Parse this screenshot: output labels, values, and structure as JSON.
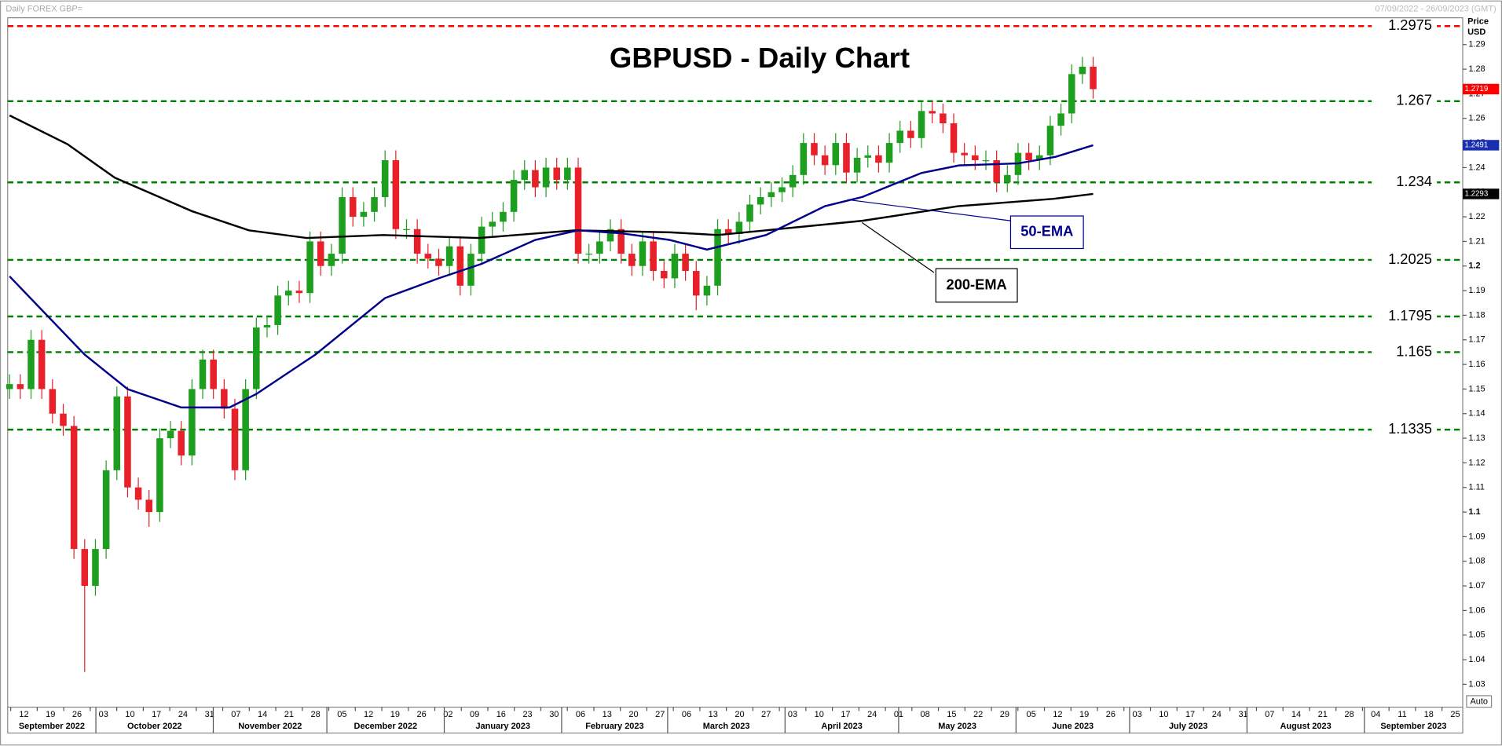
{
  "chart_data": {
    "type": "candlestick",
    "title": "GBPUSD - Daily Chart",
    "source": "Daily FOREX GBP=",
    "date_range": "07/09/2022 - 26/09/2023 (GMT)",
    "y_axis_label": [
      "Price",
      "USD"
    ],
    "auto_button": "Auto",
    "up_color": "#1e9e1e",
    "down_color": "#e8202a",
    "ylim": [
      1.0207,
      1.3009
    ],
    "yticks": [
      1.03,
      1.04,
      1.05,
      1.06,
      1.07,
      1.08,
      1.09,
      1.1,
      1.11,
      1.12,
      1.13,
      1.14,
      1.15,
      1.16,
      1.17,
      1.18,
      1.19,
      1.2,
      1.21,
      1.22,
      1.23,
      1.24,
      1.25,
      1.26,
      1.27,
      1.28,
      1.29
    ],
    "xticks": [
      "12",
      "19",
      "26",
      "03",
      "10",
      "17",
      "24",
      "31",
      "07",
      "14",
      "21",
      "28",
      "05",
      "12",
      "19",
      "26",
      "02",
      "09",
      "16",
      "23",
      "30",
      "06",
      "13",
      "20",
      "27",
      "06",
      "13",
      "20",
      "27",
      "03",
      "10",
      "17",
      "24",
      "01",
      "08",
      "15",
      "22",
      "29",
      "05",
      "12",
      "19",
      "26",
      "03",
      "10",
      "17",
      "24",
      "31",
      "07",
      "14",
      "21",
      "28",
      "04",
      "11",
      "18",
      "25"
    ],
    "months": [
      "September 2022",
      "October 2022",
      "November 2022",
      "December 2022",
      "January 2023",
      "February 2023",
      "March 2023",
      "April 2023",
      "May 2023",
      "June 2023",
      "July 2023",
      "August 2023",
      "September 2023"
    ],
    "open": [
      1.15,
      1.152,
      1.15,
      1.17,
      1.15,
      1.14,
      1.135,
      1.085,
      1.07,
      1.085,
      1.117,
      1.147,
      1.11,
      1.105,
      1.1,
      1.13,
      1.133,
      1.123,
      1.15,
      1.162,
      1.15,
      1.142,
      1.117,
      1.15,
      1.175,
      1.176,
      1.188,
      1.19,
      1.189,
      1.21,
      1.2,
      1.205,
      1.228,
      1.22,
      1.222,
      1.228,
      1.243,
      1.215,
      1.215,
      1.205,
      1.203,
      1.2,
      1.208,
      1.192,
      1.205,
      1.216,
      1.218,
      1.222,
      1.235,
      1.239,
      1.232,
      1.24,
      1.235,
      1.24,
      1.205,
      1.205,
      1.21,
      1.215,
      1.205,
      1.2,
      1.21,
      1.198,
      1.195,
      1.205,
      1.198,
      1.188,
      1.192,
      1.215,
      1.213,
      1.218,
      1.225,
      1.228,
      1.23,
      1.232,
      1.237,
      1.25,
      1.245,
      1.241,
      1.25,
      1.238,
      1.244,
      1.245,
      1.242,
      1.25,
      1.255,
      1.252,
      1.263,
      1.262,
      1.258,
      1.246,
      1.245,
      1.243,
      1.243,
      1.234,
      1.237,
      1.246,
      1.243,
      1.245,
      1.257,
      1.262,
      1.278,
      1.281
    ],
    "high": [
      1.156,
      1.156,
      1.174,
      1.174,
      1.154,
      1.144,
      1.139,
      1.089,
      1.089,
      1.121,
      1.151,
      1.151,
      1.114,
      1.109,
      1.134,
      1.137,
      1.137,
      1.154,
      1.166,
      1.166,
      1.154,
      1.146,
      1.154,
      1.179,
      1.18,
      1.192,
      1.194,
      1.194,
      1.214,
      1.214,
      1.209,
      1.232,
      1.232,
      1.226,
      1.232,
      1.247,
      1.247,
      1.219,
      1.219,
      1.209,
      1.207,
      1.212,
      1.212,
      1.209,
      1.22,
      1.222,
      1.226,
      1.239,
      1.243,
      1.243,
      1.244,
      1.244,
      1.244,
      1.244,
      1.209,
      1.214,
      1.219,
      1.219,
      1.209,
      1.214,
      1.214,
      1.202,
      1.209,
      1.209,
      1.202,
      1.196,
      1.219,
      1.219,
      1.222,
      1.229,
      1.232,
      1.234,
      1.236,
      1.241,
      1.254,
      1.254,
      1.249,
      1.254,
      1.254,
      1.248,
      1.249,
      1.249,
      1.254,
      1.259,
      1.259,
      1.267,
      1.267,
      1.266,
      1.262,
      1.25,
      1.249,
      1.247,
      1.247,
      1.241,
      1.25,
      1.25,
      1.249,
      1.261,
      1.266,
      1.282,
      1.285,
      1.285
    ],
    "low": [
      1.146,
      1.146,
      1.146,
      1.146,
      1.136,
      1.131,
      1.081,
      1.035,
      1.066,
      1.081,
      1.113,
      1.106,
      1.101,
      1.094,
      1.096,
      1.126,
      1.119,
      1.119,
      1.146,
      1.146,
      1.138,
      1.113,
      1.113,
      1.146,
      1.171,
      1.172,
      1.184,
      1.185,
      1.185,
      1.196,
      1.196,
      1.201,
      1.216,
      1.216,
      1.218,
      1.224,
      1.211,
      1.211,
      1.201,
      1.199,
      1.196,
      1.196,
      1.188,
      1.188,
      1.201,
      1.212,
      1.214,
      1.218,
      1.231,
      1.228,
      1.228,
      1.231,
      1.231,
      1.201,
      1.201,
      1.201,
      1.206,
      1.201,
      1.196,
      1.196,
      1.194,
      1.191,
      1.191,
      1.194,
      1.182,
      1.184,
      1.188,
      1.209,
      1.209,
      1.214,
      1.221,
      1.224,
      1.226,
      1.228,
      1.233,
      1.241,
      1.237,
      1.237,
      1.234,
      1.234,
      1.24,
      1.238,
      1.238,
      1.246,
      1.248,
      1.248,
      1.258,
      1.254,
      1.242,
      1.241,
      1.239,
      1.239,
      1.23,
      1.23,
      1.233,
      1.239,
      1.239,
      1.241,
      1.253,
      1.258,
      1.274,
      1.268
    ],
    "close": [
      1.152,
      1.15,
      1.17,
      1.15,
      1.14,
      1.135,
      1.085,
      1.07,
      1.085,
      1.117,
      1.147,
      1.11,
      1.105,
      1.1,
      1.13,
      1.133,
      1.123,
      1.15,
      1.162,
      1.15,
      1.142,
      1.117,
      1.15,
      1.175,
      1.176,
      1.188,
      1.19,
      1.189,
      1.21,
      1.2,
      1.205,
      1.228,
      1.22,
      1.222,
      1.228,
      1.243,
      1.215,
      1.215,
      1.205,
      1.203,
      1.2,
      1.208,
      1.192,
      1.205,
      1.216,
      1.218,
      1.222,
      1.235,
      1.239,
      1.232,
      1.24,
      1.235,
      1.24,
      1.205,
      1.205,
      1.21,
      1.215,
      1.205,
      1.2,
      1.21,
      1.198,
      1.195,
      1.205,
      1.198,
      1.188,
      1.192,
      1.215,
      1.213,
      1.218,
      1.225,
      1.228,
      1.23,
      1.232,
      1.237,
      1.25,
      1.245,
      1.241,
      1.25,
      1.238,
      1.244,
      1.245,
      1.242,
      1.25,
      1.255,
      1.252,
      1.263,
      1.262,
      1.258,
      1.246,
      1.245,
      1.243,
      1.243,
      1.234,
      1.237,
      1.246,
      1.243,
      1.245,
      1.257,
      1.262,
      1.278,
      1.281,
      1.2719
    ],
    "series": [
      {
        "name": "200-EMA",
        "color": "#000000",
        "x": [
          0,
          5.4,
          9.8,
          17,
          22.3,
          27.7,
          34.8,
          43.75,
          52.7,
          61.6,
          66,
          70.5,
          79.5,
          88.4,
          97.3,
          101
        ],
        "values": [
          1.2612,
          1.2495,
          1.2359,
          1.2223,
          1.2145,
          1.2114,
          1.2126,
          1.2114,
          1.2145,
          1.2137,
          1.2126,
          1.2145,
          1.2184,
          1.2243,
          1.2273,
          1.2293
        ]
      },
      {
        "name": "50-EMA",
        "color": "#00008b",
        "x": [
          0,
          7,
          11,
          16,
          20.5,
          23,
          28.5,
          35,
          40,
          44,
          49,
          53,
          57,
          61.5,
          65,
          70.5,
          76,
          79.5,
          85,
          88.5,
          94,
          97.5,
          101
        ],
        "values": [
          1.1958,
          1.164,
          1.15,
          1.1425,
          1.1425,
          1.148,
          1.164,
          1.187,
          1.195,
          1.2009,
          1.2106,
          1.2145,
          1.2133,
          1.2106,
          1.2067,
          1.2126,
          1.2243,
          1.2281,
          1.2378,
          1.2409,
          1.2417,
          1.2444,
          1.2491
        ]
      }
    ],
    "levels": [
      {
        "value": 1.2975,
        "color": "#ff0000"
      },
      {
        "value": 1.267,
        "color": "#008000"
      },
      {
        "value": 1.234,
        "color": "#008000"
      },
      {
        "value": 1.2025,
        "color": "#008000"
      },
      {
        "value": 1.1795,
        "color": "#008000"
      },
      {
        "value": 1.165,
        "color": "#008000"
      },
      {
        "value": 1.1335,
        "color": "#008000"
      }
    ]
  }
}
